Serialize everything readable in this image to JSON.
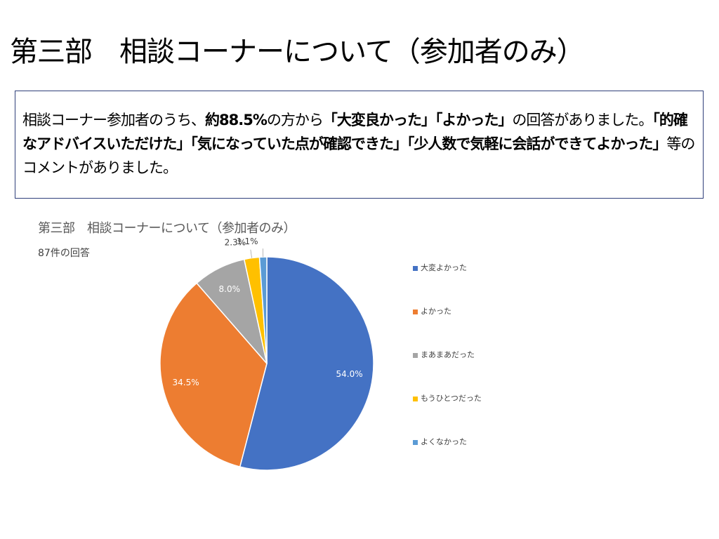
{
  "slide": {
    "title": "第三部　相談コーナーについて（参加者のみ）",
    "summary": [
      {
        "text": "相談コーナー参加者のうち、",
        "bold": false
      },
      {
        "text": "約88.5%",
        "bold": true
      },
      {
        "text": "の方から",
        "bold": false
      },
      {
        "text": "「大変良かった」「よかった」",
        "bold": true
      },
      {
        "text": "の回答がありました。",
        "bold": false
      },
      {
        "text": "「的確なアドバイスいただけた」「気になっていた点が確認できた」「少人数で気軽に会話ができてよかった」",
        "bold": true
      },
      {
        "text": "等のコメントがありました。",
        "bold": false
      }
    ]
  },
  "chart_data": {
    "type": "pie",
    "title": "第三部　相談コーナーについて（参加者のみ）",
    "subtitle": "87件の回答",
    "legend_position": "right",
    "categories": [
      "大変よかった",
      "よかった",
      "まあまあだった",
      "もうひとつだった",
      "よくなかった"
    ],
    "values": [
      54.0,
      34.5,
      8.0,
      2.3,
      1.1
    ],
    "labels": [
      "54.0%",
      "34.5%",
      "8.0%",
      "2.3%",
      "1.1%"
    ],
    "colors": [
      "#4472c4",
      "#ed7d31",
      "#a5a5a5",
      "#ffc000",
      "#5b9bd5"
    ]
  }
}
